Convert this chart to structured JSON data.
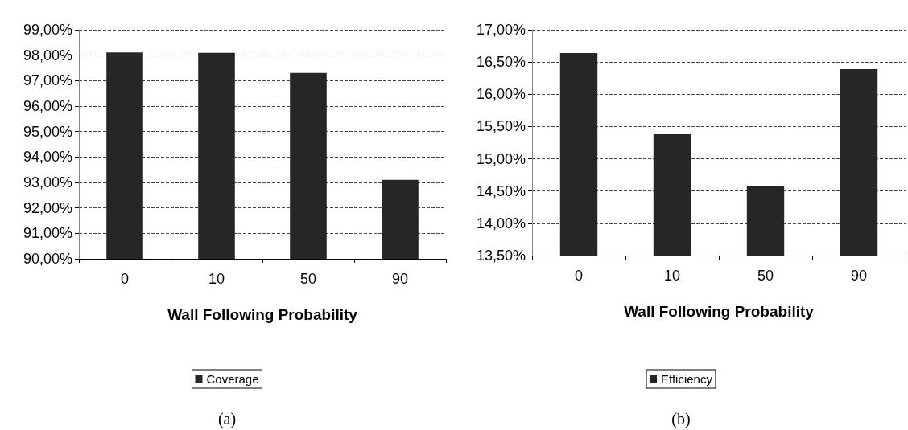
{
  "chart_data": [
    {
      "type": "bar",
      "categories": [
        "0",
        "10",
        "50",
        "90"
      ],
      "xlabel": "Wall Following Probability",
      "annotations": [
        "(a)"
      ],
      "series": [
        {
          "name": "Coverage",
          "color": "#262626",
          "values": [
            98.11,
            98.09,
            97.3,
            93.1
          ]
        }
      ],
      "ylim": [
        90,
        99
      ],
      "yticks": [
        {
          "value": 90,
          "label": "90,00%"
        },
        {
          "value": 91,
          "label": "91,00%"
        },
        {
          "value": 92,
          "label": "92,00%"
        },
        {
          "value": 93,
          "label": "93,00%"
        },
        {
          "value": 94,
          "label": "94,00%"
        },
        {
          "value": 95,
          "label": "95,00%"
        },
        {
          "value": 96,
          "label": "96,00%"
        },
        {
          "value": 97,
          "label": "97,00%"
        },
        {
          "value": 98,
          "label": "98,00%"
        },
        {
          "value": 99,
          "label": "99,00%"
        }
      ],
      "grid": "y",
      "legend": "bottom"
    },
    {
      "type": "bar",
      "categories": [
        "0",
        "10",
        "50",
        "90"
      ],
      "xlabel": "Wall Following Probability",
      "annotations": [
        "(b)"
      ],
      "series": [
        {
          "name": "Efficiency",
          "color": "#262626",
          "values": [
            16.64,
            15.38,
            14.58,
            16.39
          ]
        }
      ],
      "ylim": [
        13.5,
        17
      ],
      "yticks": [
        {
          "value": 13.5,
          "label": "13,50%"
        },
        {
          "value": 14,
          "label": "14,00%"
        },
        {
          "value": 14.5,
          "label": "14,50%"
        },
        {
          "value": 15,
          "label": "15,00%"
        },
        {
          "value": 15.5,
          "label": "15,50%"
        },
        {
          "value": 16,
          "label": "16,00%"
        },
        {
          "value": 16.5,
          "label": "16,50%"
        },
        {
          "value": 17,
          "label": "17,00%"
        }
      ],
      "grid": "y",
      "legend": "bottom"
    }
  ]
}
